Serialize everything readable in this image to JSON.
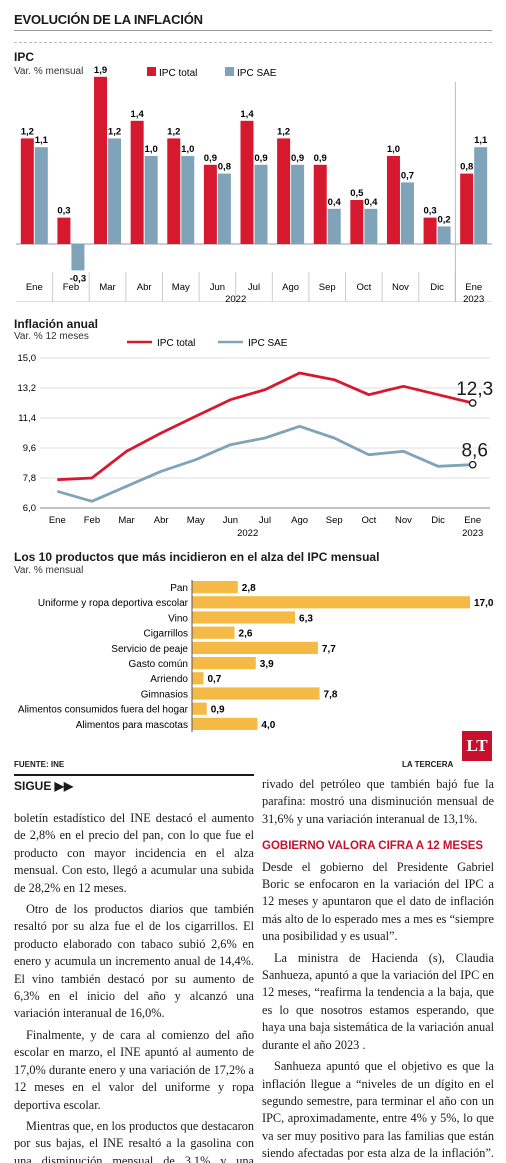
{
  "header": {
    "title": "EVOLUCIÓN DE LA INFLACIÓN"
  },
  "colors": {
    "ipc_total": "#d7192f",
    "ipc_sae": "#7fa3b8",
    "products": "#f5b945",
    "logo": "#c8102e"
  },
  "chart_data": [
    {
      "type": "bar",
      "title": "IPC",
      "subtitle": "Var. % mensual",
      "categories": [
        "Ene",
        "Feb",
        "Mar",
        "Abr",
        "May",
        "Jun",
        "Jul",
        "Ago",
        "Sep",
        "Oct",
        "Nov",
        "Dic",
        "Ene"
      ],
      "category_labels": [
        "Ene",
        "Feb",
        "Mar",
        "Abr",
        "May",
        "Jun",
        "Jul",
        "Ago",
        "Sep",
        "Oct",
        "Nov",
        "Dic",
        "Ene"
      ],
      "year_labels": [
        "2022",
        "2023"
      ],
      "series": [
        {
          "name": "IPC total",
          "values": [
            1.2,
            0.3,
            1.9,
            1.4,
            1.2,
            0.9,
            1.4,
            1.2,
            0.9,
            0.5,
            1.0,
            0.3,
            0.8
          ],
          "labels": [
            "1,2",
            "0,3",
            "1,9",
            "1,4",
            "1,2",
            "0,9",
            "1,4",
            "1,2",
            "0,9",
            "0,5",
            "1,0",
            "0,3",
            "0,8"
          ]
        },
        {
          "name": "IPC SAE",
          "values": [
            1.1,
            -0.3,
            1.2,
            1.0,
            1.0,
            0.8,
            0.9,
            0.9,
            0.4,
            0.4,
            0.7,
            0.2,
            1.1
          ],
          "labels": [
            "1,1",
            "-0,3",
            "1,2",
            "1,0",
            "1,0",
            "0,8",
            "0,9",
            "0,9",
            "0,4",
            "0,4",
            "0,7",
            "0,2",
            "1,1"
          ]
        }
      ]
    },
    {
      "type": "line",
      "title": "Inflación anual",
      "subtitle": "Var. % 12 meses",
      "categories": [
        "Ene",
        "Feb",
        "Mar",
        "Abr",
        "May",
        "Jun",
        "Jul",
        "Ago",
        "Sep",
        "Oct",
        "Nov",
        "Dic",
        "Ene"
      ],
      "year_labels": [
        "2022",
        "2023"
      ],
      "y_ticks": [
        "15,0",
        "13,2",
        "11,4",
        "9,6",
        "7,8",
        "6,0"
      ],
      "ylim": [
        6.0,
        15.0
      ],
      "series": [
        {
          "name": "IPC total",
          "values": [
            7.7,
            7.8,
            9.4,
            10.5,
            11.5,
            12.5,
            13.1,
            14.1,
            13.7,
            12.8,
            13.3,
            12.8,
            12.3
          ],
          "end_label": "12,3"
        },
        {
          "name": "IPC SAE",
          "values": [
            7.0,
            6.4,
            7.3,
            8.2,
            8.9,
            9.8,
            10.2,
            10.9,
            10.2,
            9.2,
            9.4,
            8.5,
            8.6
          ],
          "end_label": "8,6"
        }
      ]
    },
    {
      "type": "bar",
      "orientation": "horizontal",
      "title": "Los 10 productos que más incidieron en el alza del IPC mensual",
      "subtitle": "Var. % mensual",
      "categories": [
        "Pan",
        "Uniforme y ropa deportiva escolar",
        "Vino",
        "Cigarrillos",
        "Servicio de peaje",
        "Gasto común",
        "Arriendo",
        "Gimnasios",
        "Alimentos consumidos fuera del hogar",
        "Alimentos para mascotas"
      ],
      "values": [
        2.8,
        17.0,
        6.3,
        2.6,
        7.7,
        3.9,
        0.7,
        7.8,
        0.9,
        4.0
      ],
      "labels": [
        "2,8",
        "17,0",
        "6,3",
        "2,6",
        "7,7",
        "3,9",
        "0,7",
        "7,8",
        "0,9",
        "4,0"
      ]
    }
  ],
  "footer": {
    "source": "FUENTE: INE",
    "brand": "LA TERCERA",
    "logo_text": "LT"
  },
  "sigue": "SIGUE ▶▶",
  "article": {
    "left": [
      "boletín estadístico del INE destacó el aumento de 2,8% en el precio del pan, con lo que fue el producto con mayor incidencia en el alza mensual. Con esto, llegó a acumular una subida de 28,2% en 12 meses.",
      "Otro de los productos diarios que también resaltó por su alza fue el de los cigarrillos. El producto elaborado con tabaco subió 2,6% en enero y acumula un incremento anual de 14,4%. El vino también destacó por su aumento de 6,3% en el inicio del año y alcanzó una variación interanual de 16,0%.",
      "Finalmente, y de cara al comienzo del año escolar en marzo, el INE apuntó al aumento de 17,0% durante enero y una variación de 17,2% a 12 meses en el valor del uniforme y ropa deportiva escolar.",
      "Mientras que, en los productos que destacaron por sus bajas, el INE resaltó a la gasolina con una disminución mensual de 3,1% y una variación de 27,5% a 12 meses. El otro de-"
    ],
    "right_top": "rivado del petróleo que también bajó fue la parafina: mostró una disminución mensual de 31,6% y una variación interanual de 13,1%.",
    "subhead": "GOBIERNO VALORA CIFRA A 12 MESES",
    "right": [
      "Desde el gobierno del Presidente Gabriel Boric se enfocaron en la variación del IPC a 12 meses y apuntaron que el dato de inflación más alto de lo esperado mes a mes es “siempre una posibilidad y es usual”.",
      "La ministra de Hacienda (s), Claudia Sanhueza, apuntó a que la variación del IPC en 12 meses, “reafirma la tendencia a la baja, que es lo que nosotros estamos esperando, que haya una baja sistemática de la variación anual durante el año 2023 .",
      "Sanhueza apuntó que el objetivo es que la inflación llegue a “niveles de un dígito en el segundo semestre, para terminar el año con un IPC, aproximadamente, entre 4% y 5%, lo que va ser muy positivo para las familias que están siendo afectadas por esta alza de la inflación”."
    ]
  }
}
